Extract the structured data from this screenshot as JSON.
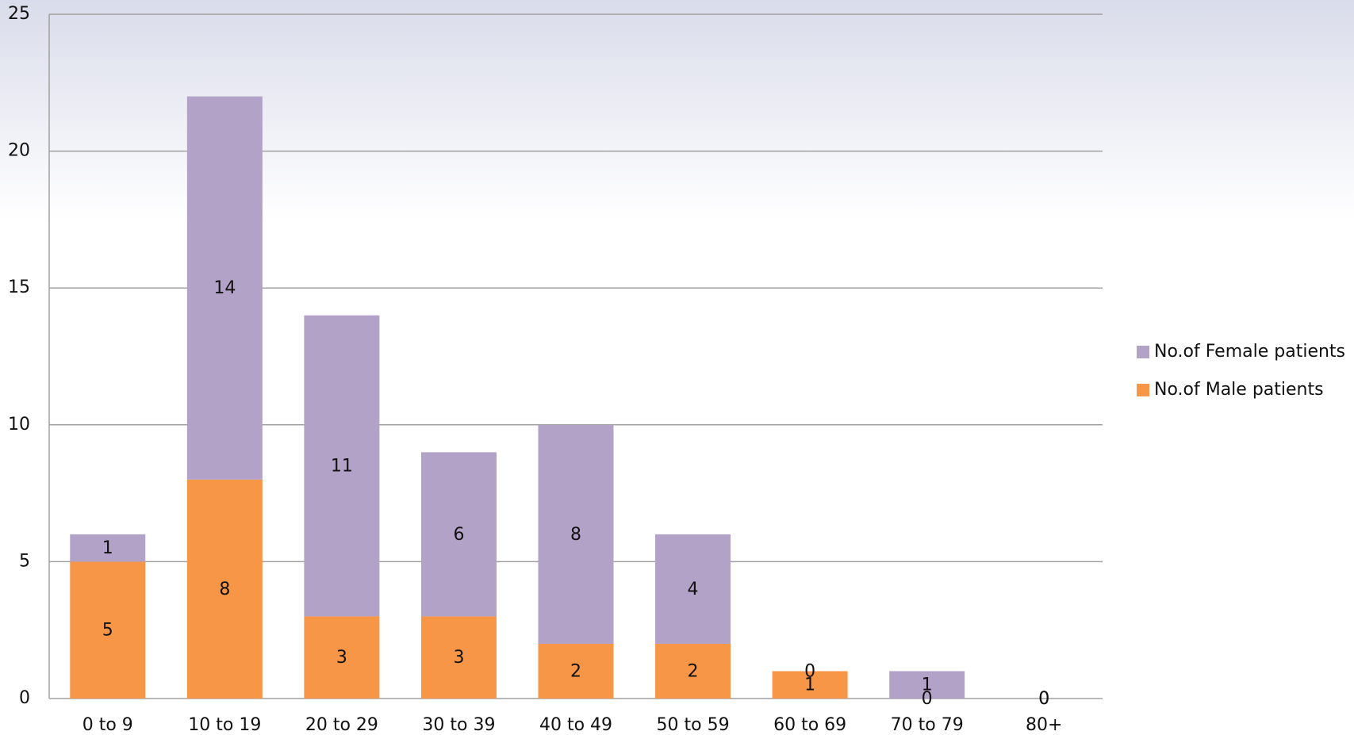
{
  "chart_data": {
    "type": "stacked_bar",
    "categories": [
      "0 to 9",
      "10 to 19",
      "20 to 29",
      "30 to 39",
      "40 to 49",
      "50 to 59",
      "60 to 69",
      "70 to 79",
      "80+"
    ],
    "series": [
      {
        "name": "No.of Male patients",
        "color": "#f79646",
        "values": [
          5,
          8,
          3,
          3,
          2,
          2,
          1,
          0,
          0
        ]
      },
      {
        "name": "No.of Female patients",
        "color": "#b3a2c8",
        "values": [
          1,
          14,
          11,
          6,
          8,
          4,
          0,
          1,
          0
        ]
      }
    ],
    "ylim": [
      0,
      25
    ],
    "yticks": [
      0,
      5,
      10,
      15,
      20,
      25
    ],
    "grid": true,
    "legend": "right"
  }
}
